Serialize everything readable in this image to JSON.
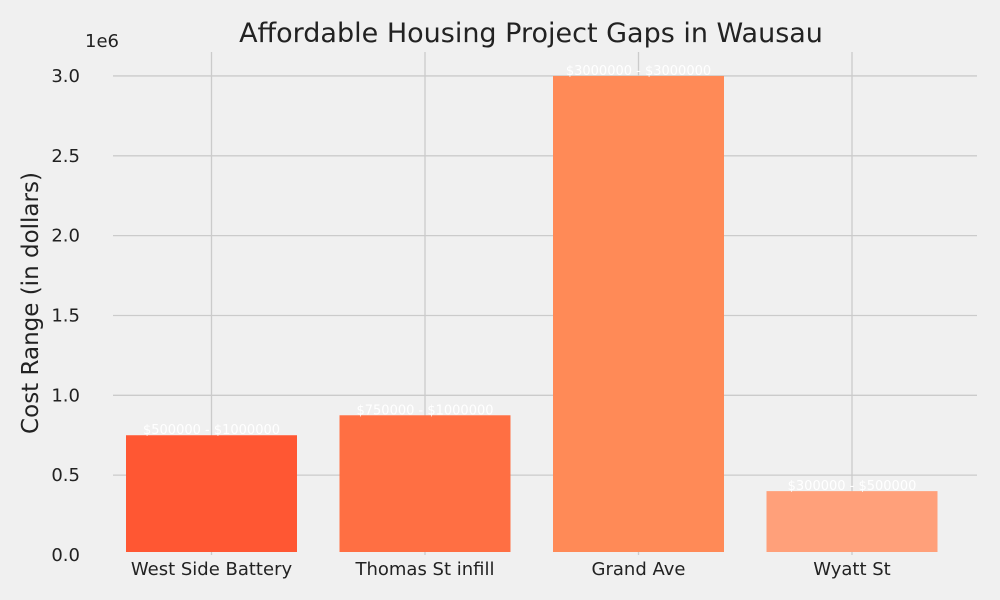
{
  "chart_data": {
    "type": "bar",
    "title": "Affordable Housing Project Gaps in Wausau",
    "xlabel": "",
    "ylabel": "Cost Range (in dollars)",
    "y_offset_label": "1e6",
    "y_scale": 1000000,
    "ylim": [
      0,
      3150000
    ],
    "yticks": [
      0,
      500000,
      1000000,
      1500000,
      2000000,
      2500000,
      3000000
    ],
    "ytick_labels": [
      "0.0",
      "0.5",
      "1.0",
      "1.5",
      "2.0",
      "2.5",
      "3.0"
    ],
    "grid": true,
    "categories": [
      "West Side Battery",
      "Thomas St infill",
      "Grand Ave",
      "Wyatt St"
    ],
    "values": [
      750000,
      875000,
      3000000,
      400000
    ],
    "bar_labels": [
      "$500000 - $1000000",
      "$750000 - $1000000",
      "$3000000 - $3000000",
      "$300000 - $500000"
    ],
    "colors": [
      "#ff5733",
      "#ff6f43",
      "#ff8a57",
      "#ffa07a"
    ]
  }
}
